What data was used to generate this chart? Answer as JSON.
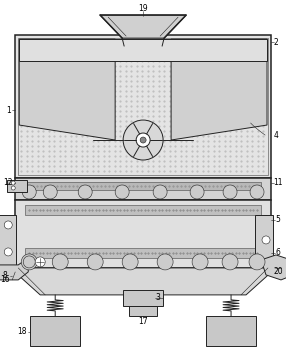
{
  "bg": "#ffffff",
  "lc": "#444444",
  "dc": "#222222",
  "gray_light": "#d8d8d8",
  "gray_mid": "#c0c0c0",
  "gray_dark": "#aaaaaa",
  "dot_color": "#bbbbbb",
  "lw_thin": 0.4,
  "lw_med": 0.7,
  "lw_thick": 1.1,
  "labels": [
    "1",
    "2",
    "3",
    "4",
    "5",
    "6",
    "8",
    "11",
    "12",
    "16",
    "17",
    "18",
    "19",
    "20"
  ]
}
